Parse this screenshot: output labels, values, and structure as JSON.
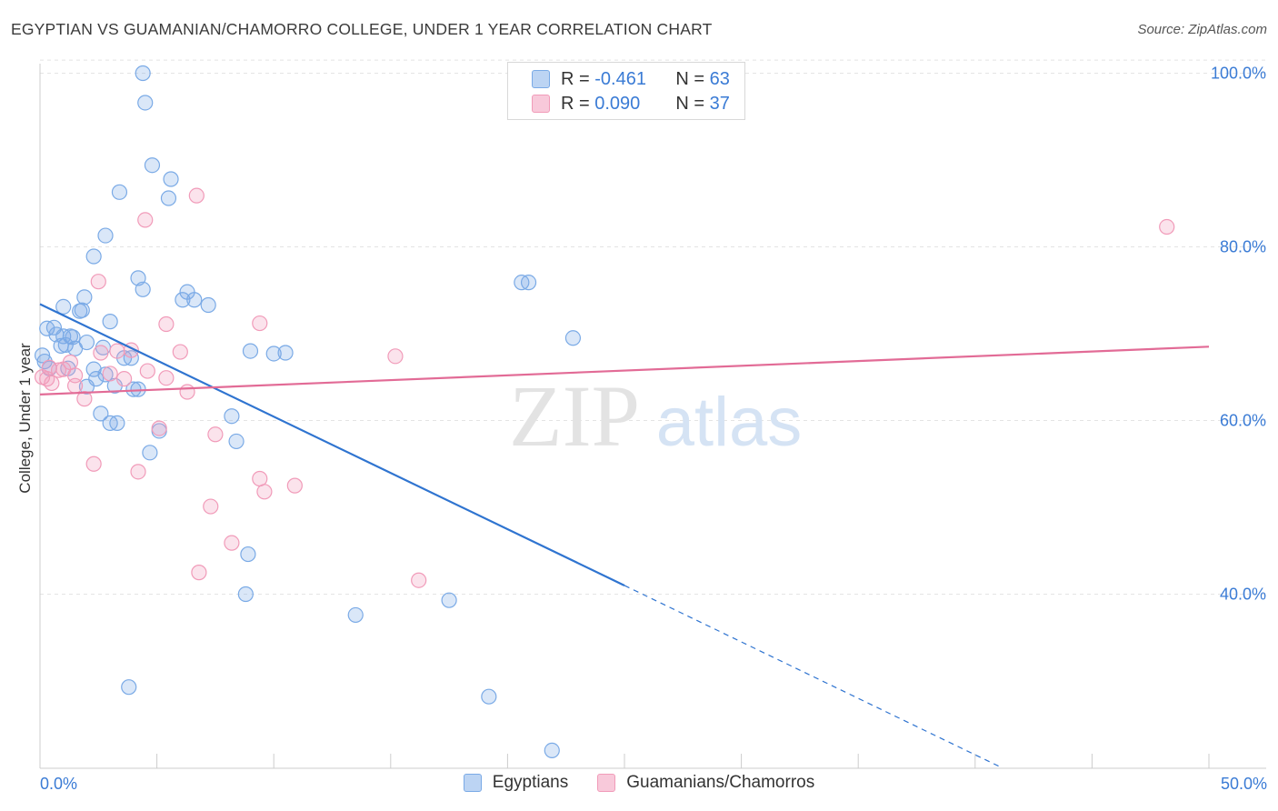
{
  "title": "EGYPTIAN VS GUAMANIAN/CHAMORRO COLLEGE, UNDER 1 YEAR CORRELATION CHART",
  "source": "Source: ZipAtlas.com",
  "watermark": {
    "zip": "ZIP",
    "atlas": "atlas"
  },
  "legend": {
    "rows": [
      {
        "r_label": "R =",
        "r_value": "-0.461",
        "n_label": "N =",
        "n_value": "63"
      },
      {
        "r_label": "R =",
        "r_value": "0.090",
        "n_label": "N =",
        "n_value": "37"
      }
    ]
  },
  "chart_data": {
    "type": "scatter",
    "title": "EGYPTIAN VS GUAMANIAN/CHAMORRO COLLEGE, UNDER 1 YEAR CORRELATION CHART",
    "xlabel": "",
    "ylabel": "College, Under 1 year",
    "xlim": [
      0,
      50
    ],
    "ylim": [
      20,
      102
    ],
    "x_tick_labels": [
      "0.0%",
      "50.0%"
    ],
    "y_ticks": [
      40,
      60,
      80,
      100
    ],
    "y_tick_labels": [
      "40.0%",
      "60.0%",
      "80.0%",
      "100.0%"
    ],
    "grid": true,
    "legend_position": "top-center",
    "series": [
      {
        "name": "Egyptians",
        "color": "#7aaae6",
        "line_color": "#2f74d0",
        "r": -0.461,
        "n": 63,
        "trend": {
          "x0": 0,
          "y0": 73.4,
          "x1": 25,
          "y1": 41.0,
          "dash_to_x": 41,
          "dash_to_y": 20.2
        },
        "points": [
          [
            4.4,
            100
          ],
          [
            4.5,
            96.6
          ],
          [
            4.8,
            89.4
          ],
          [
            5.6,
            87.8
          ],
          [
            3.4,
            86.3
          ],
          [
            5.5,
            85.6
          ],
          [
            2.8,
            81.3
          ],
          [
            2.3,
            78.9
          ],
          [
            4.2,
            76.4
          ],
          [
            4.4,
            75.1
          ],
          [
            6.3,
            74.8
          ],
          [
            1.9,
            74.2
          ],
          [
            6.1,
            73.9
          ],
          [
            6.6,
            73.9
          ],
          [
            7.2,
            73.3
          ],
          [
            1.0,
            73.1
          ],
          [
            1.7,
            72.6
          ],
          [
            1.8,
            72.7
          ],
          [
            3.0,
            71.4
          ],
          [
            0.3,
            70.6
          ],
          [
            0.6,
            70.7
          ],
          [
            0.7,
            69.9
          ],
          [
            1.0,
            69.7
          ],
          [
            1.3,
            69.7
          ],
          [
            1.4,
            69.6
          ],
          [
            2.0,
            69.0
          ],
          [
            0.9,
            68.6
          ],
          [
            1.1,
            68.7
          ],
          [
            1.5,
            68.3
          ],
          [
            2.7,
            68.4
          ],
          [
            9.0,
            68.0
          ],
          [
            10.0,
            67.7
          ],
          [
            10.5,
            67.8
          ],
          [
            3.6,
            67.2
          ],
          [
            3.9,
            67.2
          ],
          [
            0.2,
            66.8
          ],
          [
            1.2,
            66.0
          ],
          [
            2.3,
            65.9
          ],
          [
            2.8,
            65.3
          ],
          [
            2.4,
            64.8
          ],
          [
            3.2,
            64.0
          ],
          [
            4.2,
            63.6
          ],
          [
            4.0,
            63.6
          ],
          [
            2.0,
            63.9
          ],
          [
            2.6,
            60.8
          ],
          [
            8.2,
            60.5
          ],
          [
            3.0,
            59.7
          ],
          [
            3.3,
            59.7
          ],
          [
            5.1,
            58.8
          ],
          [
            8.4,
            57.6
          ],
          [
            4.7,
            56.3
          ],
          [
            20.9,
            75.9
          ],
          [
            20.6,
            75.9
          ],
          [
            22.8,
            69.5
          ],
          [
            8.9,
            44.6
          ],
          [
            8.8,
            40.0
          ],
          [
            17.5,
            39.3
          ],
          [
            13.5,
            37.6
          ],
          [
            3.8,
            29.3
          ],
          [
            19.2,
            28.2
          ],
          [
            21.9,
            22.0
          ],
          [
            0.1,
            67.5
          ],
          [
            0.4,
            66.0
          ]
        ]
      },
      {
        "name": "Guamanians/Chamorros",
        "color": "#f19bb9",
        "line_color": "#e26b96",
        "r": 0.09,
        "n": 37,
        "trend": {
          "x0": 0,
          "y0": 63.0,
          "x1": 50,
          "y1": 68.5
        },
        "points": [
          [
            6.7,
            85.9
          ],
          [
            4.5,
            83.1
          ],
          [
            2.5,
            76.0
          ],
          [
            5.4,
            71.1
          ],
          [
            9.4,
            71.2
          ],
          [
            2.6,
            67.8
          ],
          [
            3.3,
            68.0
          ],
          [
            3.9,
            68.1
          ],
          [
            6.0,
            67.9
          ],
          [
            15.2,
            67.4
          ],
          [
            1.3,
            66.7
          ],
          [
            0.4,
            66.1
          ],
          [
            0.8,
            65.8
          ],
          [
            1.0,
            65.9
          ],
          [
            1.5,
            65.2
          ],
          [
            3.0,
            65.4
          ],
          [
            3.6,
            64.8
          ],
          [
            4.6,
            65.7
          ],
          [
            5.4,
            64.9
          ],
          [
            1.5,
            64.0
          ],
          [
            0.5,
            64.3
          ],
          [
            6.3,
            63.3
          ],
          [
            1.9,
            62.5
          ],
          [
            5.1,
            59.1
          ],
          [
            7.5,
            58.4
          ],
          [
            2.3,
            55.0
          ],
          [
            4.2,
            54.1
          ],
          [
            9.4,
            53.3
          ],
          [
            9.6,
            51.8
          ],
          [
            10.9,
            52.5
          ],
          [
            7.3,
            50.1
          ],
          [
            8.2,
            45.9
          ],
          [
            6.8,
            42.5
          ],
          [
            16.2,
            41.6
          ],
          [
            48.2,
            82.3
          ],
          [
            0.1,
            65.0
          ],
          [
            0.3,
            64.8
          ]
        ]
      }
    ]
  }
}
